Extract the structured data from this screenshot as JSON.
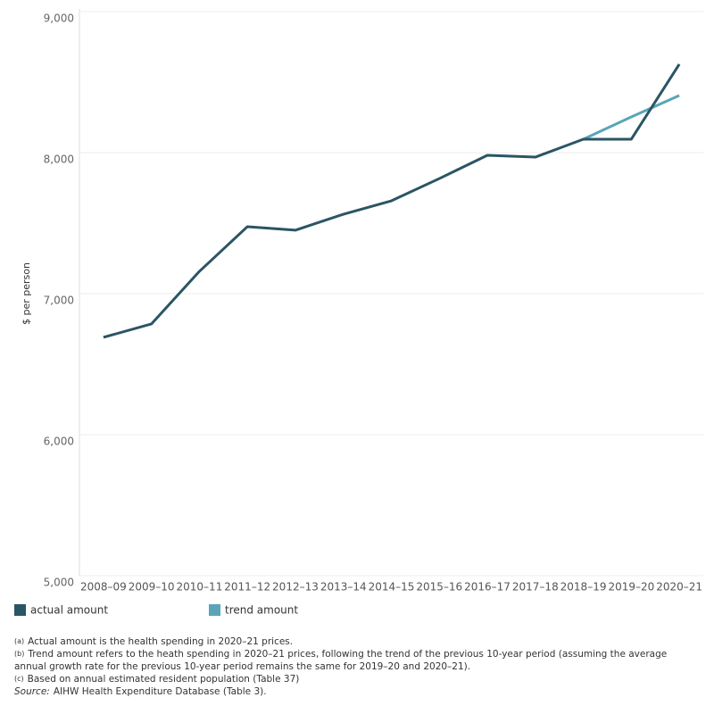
{
  "chart_data": {
    "type": "line",
    "y_label": "$ per person",
    "categories": [
      "2008–09",
      "2009–10",
      "2010–11",
      "2011–12",
      "2012–13",
      "2013–14",
      "2014–15",
      "2015–16",
      "2016–17",
      "2017–18",
      "2018–19",
      "2019–20",
      "2020–21"
    ],
    "series": [
      {
        "name": "actual amount",
        "color": "#2a5564",
        "values": [
          6690,
          6785,
          7158,
          7475,
          7450,
          7563,
          7658,
          7816,
          7981,
          7968,
          8095,
          8095,
          8627
        ]
      },
      {
        "name": "trend amount",
        "color": "#5aa5b8",
        "values": [
          null,
          null,
          null,
          null,
          null,
          null,
          null,
          null,
          null,
          null,
          8095,
          8253,
          8405
        ]
      }
    ],
    "ylim": [
      5000,
      9000
    ],
    "yticks": [
      {
        "value": 5000,
        "label": "5,000"
      },
      {
        "value": 6000,
        "label": "6,000"
      },
      {
        "value": 7000,
        "label": "7,000"
      },
      {
        "value": 8000,
        "label": "8,000"
      },
      {
        "value": 9000,
        "label": "9,000"
      }
    ],
    "grid": true
  },
  "footnotes": [
    {
      "marker": "(a)",
      "text": "Actual amount is the health spending in 2020–21 prices."
    },
    {
      "marker": "(b)",
      "text": "Trend amount refers to the heath spending in 2020–21 prices, following the trend of the previous 10-year period (assuming the average annual growth rate for the previous 10-year period remains the same for  2019–20 and 2020–21)."
    },
    {
      "marker": "(c)",
      "text": "Based on annual estimated resident population (Table 37)"
    }
  ],
  "source": {
    "label": "Source:",
    "text": "AIHW Health Expenditure Database (Table 3)."
  }
}
